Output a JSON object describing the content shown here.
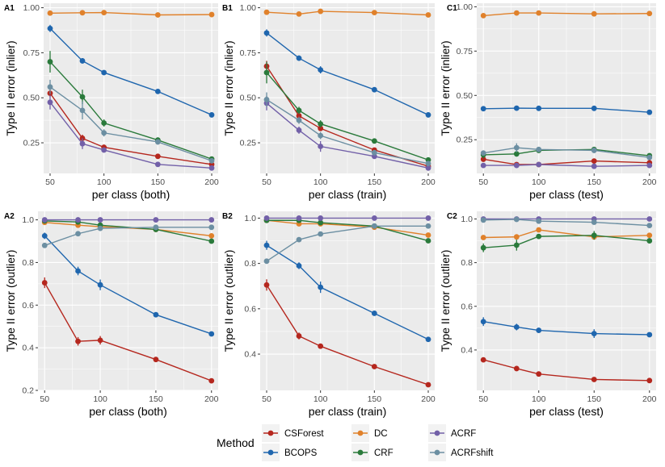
{
  "legend": {
    "title": "Method",
    "entries": [
      {
        "name": "CSForest",
        "color": "#B5271E"
      },
      {
        "name": "BCOPS",
        "color": "#1F66AE"
      },
      {
        "name": "DC",
        "color": "#E0812B"
      },
      {
        "name": "CRF",
        "color": "#2A7A3B"
      },
      {
        "name": "ACRF",
        "color": "#7260A8"
      },
      {
        "name": "ACRFshift",
        "color": "#6C8FA2"
      }
    ]
  },
  "chart_data": [
    {
      "type": "line",
      "panel_label": "A1",
      "xlabel": "per class (both)",
      "ylabel": "Type II error (inlier)",
      "x": [
        50,
        80,
        100,
        150,
        200
      ],
      "xlim": [
        44,
        206
      ],
      "ylim": [
        0.08,
        1.025
      ],
      "xticks": [
        50,
        100,
        150,
        200
      ],
      "xtick_labels": [
        "50",
        "100",
        "150",
        "200"
      ],
      "yticks": [
        0.25,
        0.5,
        0.75,
        1.0
      ],
      "ytick_labels": [
        "0.25",
        "0.50",
        "0.75",
        "1.00"
      ],
      "series": [
        {
          "name": "CSForest",
          "values": [
            0.525,
            0.275,
            0.225,
            0.175,
            0.13
          ],
          "err": [
            0.02,
            0.02,
            0.015,
            0.01,
            0.01
          ]
        },
        {
          "name": "BCOPS",
          "values": [
            0.885,
            0.705,
            0.64,
            0.535,
            0.405
          ],
          "err": [
            0.02,
            0.015,
            0.01,
            0.01,
            0.01
          ]
        },
        {
          "name": "DC",
          "values": [
            0.97,
            0.972,
            0.973,
            0.96,
            0.962
          ],
          "err": [
            0.005,
            0.005,
            0.005,
            0.005,
            0.005
          ]
        },
        {
          "name": "CRF",
          "values": [
            0.7,
            0.505,
            0.36,
            0.265,
            0.16
          ],
          "err": [
            0.06,
            0.04,
            0.02,
            0.015,
            0.01
          ]
        },
        {
          "name": "ACRF",
          "values": [
            0.475,
            0.245,
            0.21,
            0.13,
            0.11
          ],
          "err": [
            0.04,
            0.03,
            0.01,
            0.01,
            0.01
          ]
        },
        {
          "name": "ACRFshift",
          "values": [
            0.56,
            0.43,
            0.305,
            0.255,
            0.15
          ],
          "err": [
            0.04,
            0.05,
            0.02,
            0.015,
            0.01
          ]
        }
      ]
    },
    {
      "type": "line",
      "panel_label": "B1",
      "xlabel": "per class (train)",
      "ylabel": "Type II error (inlier)",
      "x": [
        50,
        80,
        100,
        150,
        200
      ],
      "xlim": [
        44,
        206
      ],
      "ylim": [
        0.08,
        1.025
      ],
      "xticks": [
        50,
        100,
        150,
        200
      ],
      "xtick_labels": [
        "50",
        "100",
        "150",
        "200"
      ],
      "yticks": [
        0.25,
        0.5,
        0.75,
        1.0
      ],
      "ytick_labels": [
        "0.25",
        "0.50",
        "0.75",
        "1.00"
      ],
      "series": [
        {
          "name": "CSForest",
          "values": [
            0.675,
            0.4,
            0.33,
            0.21,
            0.12
          ],
          "err": [
            0.03,
            0.02,
            0.015,
            0.01,
            0.01
          ]
        },
        {
          "name": "BCOPS",
          "values": [
            0.86,
            0.72,
            0.655,
            0.545,
            0.405
          ],
          "err": [
            0.02,
            0.015,
            0.02,
            0.01,
            0.01
          ]
        },
        {
          "name": "DC",
          "values": [
            0.975,
            0.965,
            0.98,
            0.973,
            0.96
          ],
          "err": [
            0.005,
            0.005,
            0.005,
            0.005,
            0.005
          ]
        },
        {
          "name": "CRF",
          "values": [
            0.64,
            0.43,
            0.355,
            0.26,
            0.155
          ],
          "err": [
            0.06,
            0.02,
            0.02,
            0.01,
            0.01
          ]
        },
        {
          "name": "ACRF",
          "values": [
            0.47,
            0.32,
            0.23,
            0.175,
            0.11
          ],
          "err": [
            0.04,
            0.02,
            0.03,
            0.01,
            0.01
          ]
        },
        {
          "name": "ACRFshift",
          "values": [
            0.49,
            0.375,
            0.29,
            0.195,
            0.135
          ],
          "err": [
            0.04,
            0.02,
            0.02,
            0.01,
            0.01
          ]
        }
      ]
    },
    {
      "type": "line",
      "panel_label": "C1",
      "xlabel": "per class (test)",
      "ylabel": "Type II error (inlier)",
      "x": [
        50,
        80,
        100,
        150,
        200
      ],
      "xlim": [
        44,
        206
      ],
      "ylim": [
        0.06,
        1.02
      ],
      "xticks": [
        50,
        100,
        150,
        200
      ],
      "xtick_labels": [
        "50",
        "100",
        "150",
        "200"
      ],
      "yticks": [
        0.25,
        0.5,
        0.75,
        1.0
      ],
      "ytick_labels": [
        "0.25",
        "0.50",
        "0.75",
        "1.00"
      ],
      "series": [
        {
          "name": "CSForest",
          "values": [
            0.14,
            0.11,
            0.11,
            0.13,
            0.12
          ],
          "err": [
            0.01,
            0.01,
            0.01,
            0.01,
            0.01
          ]
        },
        {
          "name": "BCOPS",
          "values": [
            0.425,
            0.428,
            0.427,
            0.427,
            0.405
          ],
          "err": [
            0.01,
            0.01,
            0.01,
            0.01,
            0.01
          ]
        },
        {
          "name": "DC",
          "values": [
            0.95,
            0.965,
            0.965,
            0.96,
            0.962
          ],
          "err": [
            0.005,
            0.005,
            0.005,
            0.005,
            0.005
          ]
        },
        {
          "name": "CRF",
          "values": [
            0.165,
            0.17,
            0.19,
            0.195,
            0.16
          ],
          "err": [
            0.02,
            0.015,
            0.01,
            0.01,
            0.01
          ]
        },
        {
          "name": "ACRF",
          "values": [
            0.105,
            0.105,
            0.11,
            0.1,
            0.105
          ],
          "err": [
            0.01,
            0.01,
            0.01,
            0.01,
            0.01
          ]
        },
        {
          "name": "ACRFshift",
          "values": [
            0.175,
            0.205,
            0.195,
            0.19,
            0.15
          ],
          "err": [
            0.015,
            0.025,
            0.015,
            0.015,
            0.01
          ]
        }
      ]
    },
    {
      "type": "line",
      "panel_label": "A2",
      "xlabel": "per class (both)",
      "ylabel": "Type II error (outlier)",
      "x": [
        50,
        80,
        100,
        150,
        200
      ],
      "xlim": [
        44,
        206
      ],
      "ylim": [
        0.2,
        1.04
      ],
      "xticks": [
        50,
        100,
        150,
        200
      ],
      "xtick_labels": [
        "50",
        "100",
        "150",
        "200"
      ],
      "yticks": [
        0.2,
        0.4,
        0.6,
        0.8,
        1.0
      ],
      "ytick_labels": [
        "0.2",
        "0.4",
        "0.6",
        "0.8",
        "1.0"
      ],
      "series": [
        {
          "name": "CSForest",
          "values": [
            0.705,
            0.43,
            0.435,
            0.345,
            0.245
          ],
          "err": [
            0.025,
            0.02,
            0.02,
            0.01,
            0.01
          ]
        },
        {
          "name": "BCOPS",
          "values": [
            0.925,
            0.76,
            0.695,
            0.555,
            0.465
          ],
          "err": [
            0.015,
            0.02,
            0.025,
            0.01,
            0.01
          ]
        },
        {
          "name": "DC",
          "values": [
            0.988,
            0.975,
            0.968,
            0.955,
            0.925
          ],
          "err": [
            0.005,
            0.005,
            0.005,
            0.005,
            0.005
          ]
        },
        {
          "name": "CRF",
          "values": [
            0.995,
            0.99,
            0.975,
            0.955,
            0.9
          ],
          "err": [
            0.005,
            0.005,
            0.005,
            0.005,
            0.005
          ]
        },
        {
          "name": "ACRF",
          "values": [
            1.0,
            1.0,
            1.0,
            1.0,
            1.0
          ],
          "err": [
            0.002,
            0.002,
            0.002,
            0.002,
            0.002
          ]
        },
        {
          "name": "ACRFshift",
          "values": [
            0.88,
            0.935,
            0.96,
            0.965,
            0.965
          ],
          "err": [
            0.01,
            0.01,
            0.01,
            0.005,
            0.005
          ]
        }
      ]
    },
    {
      "type": "line",
      "panel_label": "B2",
      "xlabel": "per class (train)",
      "ylabel": "Type II error (outlier)",
      "x": [
        50,
        80,
        100,
        150,
        200
      ],
      "xlim": [
        44,
        206
      ],
      "ylim": [
        0.24,
        1.03
      ],
      "xticks": [
        50,
        100,
        150,
        200
      ],
      "xtick_labels": [
        "50",
        "100",
        "150",
        "200"
      ],
      "yticks": [
        0.4,
        0.6,
        0.8,
        1.0
      ],
      "ytick_labels": [
        "0.4",
        "0.6",
        "0.8",
        "1.0"
      ],
      "series": [
        {
          "name": "CSForest",
          "values": [
            0.705,
            0.48,
            0.435,
            0.345,
            0.265
          ],
          "err": [
            0.025,
            0.015,
            0.01,
            0.01,
            0.01
          ]
        },
        {
          "name": "BCOPS",
          "values": [
            0.88,
            0.79,
            0.695,
            0.58,
            0.465
          ],
          "err": [
            0.02,
            0.015,
            0.025,
            0.01,
            0.01
          ]
        },
        {
          "name": "DC",
          "values": [
            0.99,
            0.975,
            0.975,
            0.96,
            0.925
          ],
          "err": [
            0.005,
            0.005,
            0.005,
            0.005,
            0.005
          ]
        },
        {
          "name": "CRF",
          "values": [
            0.99,
            0.99,
            0.98,
            0.965,
            0.9
          ],
          "err": [
            0.005,
            0.005,
            0.005,
            0.005,
            0.005
          ]
        },
        {
          "name": "ACRF",
          "values": [
            1.0,
            1.0,
            1.0,
            1.0,
            1.0
          ],
          "err": [
            0.002,
            0.002,
            0.002,
            0.002,
            0.002
          ]
        },
        {
          "name": "ACRFshift",
          "values": [
            0.81,
            0.905,
            0.93,
            0.965,
            0.965
          ],
          "err": [
            0.01,
            0.01,
            0.01,
            0.005,
            0.005
          ]
        }
      ]
    },
    {
      "type": "line",
      "panel_label": "C2",
      "xlabel": "per class (test)",
      "ylabel": "Type II error (outlier)",
      "x": [
        50,
        80,
        100,
        150,
        200
      ],
      "xlim": [
        44,
        206
      ],
      "ylim": [
        0.215,
        1.035
      ],
      "xticks": [
        50,
        100,
        150,
        200
      ],
      "xtick_labels": [
        "50",
        "100",
        "150",
        "200"
      ],
      "yticks": [
        0.4,
        0.6,
        0.8,
        1.0
      ],
      "ytick_labels": [
        "0.4",
        "0.6",
        "0.8",
        "1.0"
      ],
      "series": [
        {
          "name": "CSForest",
          "values": [
            0.355,
            0.315,
            0.29,
            0.265,
            0.26
          ],
          "err": [
            0.01,
            0.01,
            0.01,
            0.01,
            0.01
          ]
        },
        {
          "name": "BCOPS",
          "values": [
            0.53,
            0.505,
            0.49,
            0.475,
            0.47
          ],
          "err": [
            0.02,
            0.015,
            0.01,
            0.02,
            0.01
          ]
        },
        {
          "name": "DC",
          "values": [
            0.915,
            0.918,
            0.95,
            0.918,
            0.925
          ],
          "err": [
            0.01,
            0.01,
            0.01,
            0.01,
            0.005
          ]
        },
        {
          "name": "CRF",
          "values": [
            0.868,
            0.88,
            0.92,
            0.925,
            0.9
          ],
          "err": [
            0.02,
            0.025,
            0.01,
            0.02,
            0.01
          ]
        },
        {
          "name": "ACRF",
          "values": [
            1.0,
            1.0,
            1.0,
            1.0,
            1.0
          ],
          "err": [
            0.002,
            0.002,
            0.002,
            0.002,
            0.002
          ]
        },
        {
          "name": "ACRFshift",
          "values": [
            0.995,
            0.998,
            0.99,
            0.985,
            0.97
          ],
          "err": [
            0.01,
            0.005,
            0.005,
            0.005,
            0.005
          ]
        }
      ]
    }
  ]
}
